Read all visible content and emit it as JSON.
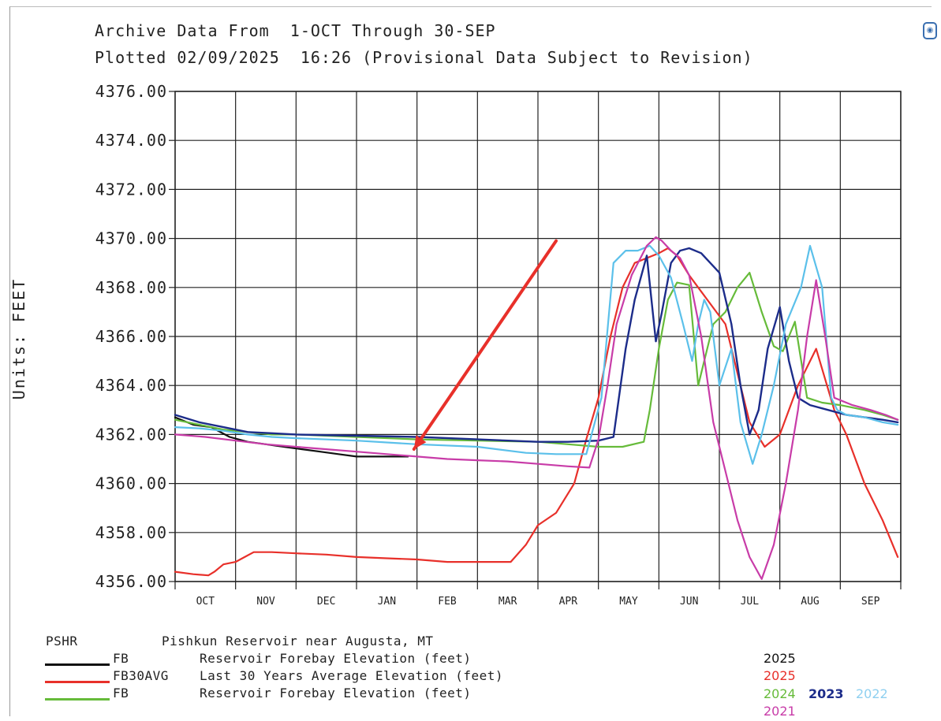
{
  "header": {
    "line1": "Archive Data From  1-OCT Through 30-SEP",
    "line2": "Plotted 02/09/2025  16:26 (Provisional Data Subject to Revision)"
  },
  "corner_icon": "camera-lens-icon",
  "legend": {
    "station_code": "PSHR",
    "station_name": "Pishkun Reservoir near Augusta, MT",
    "rows": [
      {
        "code": "FB",
        "desc": "Reservoir Forebay Elevation (feet)",
        "color": "#111111"
      },
      {
        "code": "FB30AVG",
        "desc": "Last 30 Years Average Elevation (feet)",
        "color": "#e8302a"
      },
      {
        "code": "FB",
        "desc": "Reservoir Forebay Elevation (feet)",
        "color": "#66bb3a"
      }
    ],
    "years": [
      {
        "label": "2025",
        "color": "#111111"
      },
      {
        "label": "2025",
        "color": "#e8302a"
      },
      {
        "label": "2024",
        "color": "#66bb3a"
      },
      {
        "label": "2023",
        "color": "#1c2c8a"
      },
      {
        "label": "2022",
        "color": "#8fd0f0"
      },
      {
        "label": "2021",
        "color": "#c83ca8"
      }
    ]
  },
  "chart_data": {
    "type": "line",
    "title": "Archive Data From  1-OCT Through 30-SEP",
    "subtitle": "Plotted 02/09/2025  16:26 (Provisional Data Subject to Revision)",
    "xlabel": "",
    "ylabel": "Units: FEET",
    "xlim": [
      0,
      12
    ],
    "ylim": [
      4356,
      4376
    ],
    "categories": [
      "OCT",
      "NOV",
      "DEC",
      "JAN",
      "FEB",
      "MAR",
      "APR",
      "MAY",
      "JUN",
      "JUL",
      "AUG",
      "SEP"
    ],
    "yticks": [
      "4356.00",
      "4358.00",
      "4360.00",
      "4362.00",
      "4364.00",
      "4366.00",
      "4368.00",
      "4370.00",
      "4372.00",
      "4374.00",
      "4376.00"
    ],
    "grid": true,
    "series": [
      {
        "name": "2025",
        "color": "#111111",
        "width": 2.2,
        "x": [
          0,
          0.3,
          0.6,
          0.9,
          1.2,
          1.5,
          1.8,
          2.1,
          2.4,
          2.7,
          3.0,
          3.3,
          3.85
        ],
        "y": [
          4362.7,
          4362.4,
          4362.3,
          4361.9,
          4361.7,
          4361.6,
          4361.5,
          4361.4,
          4361.3,
          4361.2,
          4361.1,
          4361.1,
          4361.1
        ]
      },
      {
        "name": "2025 avg",
        "color": "#e8302a",
        "width": 2.2,
        "x": [
          0,
          0.3,
          0.55,
          0.65,
          0.8,
          1.0,
          1.15,
          1.3,
          1.6,
          2.0,
          2.5,
          3.0,
          3.5,
          4.0,
          4.5,
          5.0,
          5.3,
          5.55,
          5.8,
          6.0,
          6.3,
          6.6,
          6.8,
          7.0,
          7.2,
          7.4,
          7.6,
          7.8,
          8.0,
          8.15,
          8.3,
          8.5,
          8.8,
          9.1,
          9.3,
          9.5,
          9.75,
          10.0,
          10.3,
          10.6,
          10.9,
          11.1,
          11.4,
          11.7,
          11.95
        ],
        "y": [
          4356.4,
          4356.3,
          4356.25,
          4356.4,
          4356.7,
          4356.8,
          4357.0,
          4357.2,
          4357.2,
          4357.15,
          4357.1,
          4357.0,
          4356.95,
          4356.9,
          4356.8,
          4356.8,
          4356.8,
          4356.8,
          4357.5,
          4358.3,
          4358.8,
          4360.0,
          4361.8,
          4363.5,
          4366.0,
          4368.0,
          4369.0,
          4369.2,
          4369.4,
          4369.6,
          4369.3,
          4368.5,
          4367.5,
          4366.5,
          4364.5,
          4362.5,
          4361.5,
          4362.0,
          4364.0,
          4365.5,
          4363.0,
          4362.0,
          4360.0,
          4358.5,
          4357.0
        ]
      },
      {
        "name": "2024",
        "color": "#66bb3a",
        "width": 2.2,
        "x": [
          0,
          0.4,
          0.8,
          1.2,
          1.6,
          2.0,
          3.0,
          4.0,
          5.0,
          6.0,
          6.5,
          7.0,
          7.4,
          7.75,
          7.85,
          8.0,
          8.15,
          8.3,
          8.5,
          8.65,
          8.75,
          8.9,
          9.1,
          9.3,
          9.5,
          9.7,
          9.9,
          10.05,
          10.15,
          10.25,
          10.45,
          10.7,
          11.0,
          11.4,
          11.7,
          11.95
        ],
        "y": [
          4362.6,
          4362.4,
          4362.2,
          4362.1,
          4362.0,
          4362.0,
          4361.9,
          4361.8,
          4361.75,
          4361.7,
          4361.6,
          4361.5,
          4361.5,
          4361.7,
          4363.0,
          4365.5,
          4367.5,
          4368.2,
          4368.1,
          4364.0,
          4365.0,
          4366.5,
          4367.0,
          4368.0,
          4368.6,
          4367.0,
          4365.6,
          4365.4,
          4366.0,
          4366.6,
          4363.5,
          4363.3,
          4363.2,
          4363.0,
          4362.8,
          4362.6
        ]
      },
      {
        "name": "2023",
        "color": "#1c2c8a",
        "width": 2.4,
        "x": [
          0,
          0.4,
          0.8,
          1.2,
          1.6,
          2.0,
          3.0,
          4.0,
          5.0,
          6.0,
          6.5,
          7.0,
          7.25,
          7.45,
          7.6,
          7.8,
          7.95,
          8.05,
          8.2,
          8.35,
          8.5,
          8.7,
          8.85,
          9.0,
          9.2,
          9.35,
          9.5,
          9.65,
          9.8,
          10.0,
          10.15,
          10.3,
          10.5,
          10.8,
          11.1,
          11.4,
          11.7,
          11.95
        ],
        "y": [
          4362.8,
          4362.5,
          4362.3,
          4362.1,
          4362.05,
          4362.0,
          4361.95,
          4361.9,
          4361.8,
          4361.7,
          4361.7,
          4361.75,
          4361.9,
          4365.5,
          4367.5,
          4369.3,
          4365.8,
          4367.0,
          4369.0,
          4369.5,
          4369.6,
          4369.4,
          4369.0,
          4368.6,
          4366.5,
          4364.0,
          4362.0,
          4363.0,
          4365.5,
          4367.2,
          4365.0,
          4363.5,
          4363.2,
          4363.0,
          4362.8,
          4362.7,
          4362.6,
          4362.5
        ]
      },
      {
        "name": "2022",
        "color": "#5bc0ea",
        "width": 2.2,
        "x": [
          0,
          0.4,
          0.8,
          1.2,
          1.6,
          2.0,
          3.0,
          4.0,
          5.0,
          5.8,
          6.3,
          6.8,
          7.05,
          7.25,
          7.45,
          7.65,
          7.85,
          8.0,
          8.2,
          8.4,
          8.55,
          8.65,
          8.75,
          8.85,
          9.0,
          9.2,
          9.35,
          9.55,
          9.7,
          9.9,
          10.1,
          10.35,
          10.5,
          10.7,
          10.85,
          10.95,
          11.1,
          11.4,
          11.7,
          11.95
        ],
        "y": [
          4362.3,
          4362.25,
          4362.15,
          4362.0,
          4361.9,
          4361.85,
          4361.75,
          4361.6,
          4361.5,
          4361.25,
          4361.2,
          4361.2,
          4363.5,
          4369.0,
          4369.5,
          4369.5,
          4369.7,
          4369.3,
          4368.4,
          4366.5,
          4365.0,
          4366.5,
          4367.5,
          4367.0,
          4364.0,
          4365.5,
          4362.5,
          4360.8,
          4362.0,
          4364.0,
          4366.5,
          4368.0,
          4369.7,
          4368.0,
          4363.5,
          4363.0,
          4362.8,
          4362.7,
          4362.5,
          4362.4
        ]
      },
      {
        "name": "2021",
        "color": "#c83ca8",
        "width": 2.2,
        "x": [
          0,
          0.5,
          1.0,
          1.5,
          2.0,
          2.5,
          3.0,
          3.5,
          4.0,
          4.5,
          5.0,
          5.5,
          6.0,
          6.5,
          6.85,
          7.0,
          7.15,
          7.3,
          7.55,
          7.8,
          7.95,
          8.05,
          8.2,
          8.35,
          8.5,
          8.7,
          8.9,
          9.1,
          9.3,
          9.5,
          9.7,
          9.9,
          10.1,
          10.3,
          10.45,
          10.6,
          10.75,
          10.9,
          11.2,
          11.5,
          11.75,
          11.95
        ],
        "y": [
          4362.0,
          4361.9,
          4361.75,
          4361.6,
          4361.5,
          4361.4,
          4361.3,
          4361.2,
          4361.1,
          4361.0,
          4360.95,
          4360.9,
          4360.8,
          4360.7,
          4360.65,
          4361.8,
          4364.0,
          4366.5,
          4368.5,
          4369.7,
          4370.05,
          4369.9,
          4369.5,
          4369.2,
          4368.5,
          4366.0,
          4362.5,
          4360.5,
          4358.5,
          4357.0,
          4356.1,
          4357.5,
          4360.0,
          4363.0,
          4366.0,
          4368.3,
          4366.0,
          4363.5,
          4363.2,
          4363.0,
          4362.8,
          4362.6
        ]
      }
    ],
    "annotation": {
      "type": "arrow",
      "color": "#e8302a",
      "from": [
        6.3,
        4369.9
      ],
      "to": [
        3.95,
        4361.4
      ]
    }
  }
}
